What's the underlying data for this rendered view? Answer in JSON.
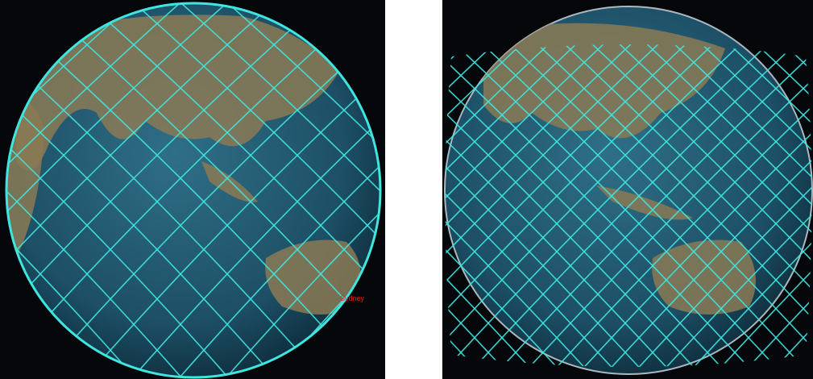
{
  "left_globe": {
    "city_label": "Sydney"
  }
}
